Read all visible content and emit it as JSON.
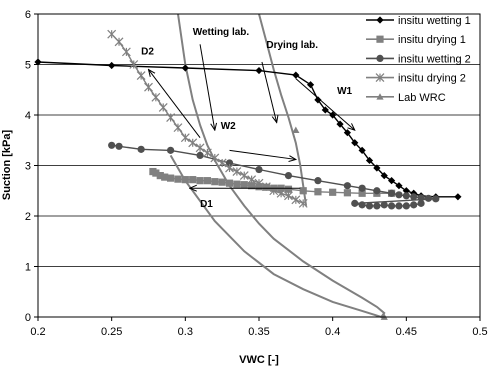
{
  "chart_data": {
    "type": "scatter",
    "title": "",
    "xlabel": "VWC [-]",
    "ylabel": "Suction [kPa]",
    "xlim": [
      0.2,
      0.5
    ],
    "ylim": [
      0,
      6
    ],
    "x_ticks": [
      0.2,
      0.25,
      0.3,
      0.35,
      0.4,
      0.45,
      0.5
    ],
    "x_tick_labels": [
      "0.2",
      "0.25",
      "0.3",
      "0.35",
      "0.4",
      "0.45",
      "0.5"
    ],
    "y_ticks": [
      0,
      1,
      2,
      3,
      4,
      5,
      6
    ],
    "y_tick_labels": [
      "0",
      "1",
      "2",
      "3",
      "4",
      "5",
      "6"
    ],
    "grid": "horizontal",
    "legend_position": "top-right",
    "series": [
      {
        "name": "insitu wetting 1",
        "marker": "diamond",
        "color": "#000000",
        "x": [
          0.2,
          0.25,
          0.3,
          0.35,
          0.375,
          0.385,
          0.39,
          0.395,
          0.4,
          0.405,
          0.41,
          0.415,
          0.42,
          0.425,
          0.43,
          0.435,
          0.44,
          0.445,
          0.45,
          0.455,
          0.46,
          0.47,
          0.485
        ],
        "y": [
          5.05,
          4.98,
          4.93,
          4.88,
          4.79,
          4.6,
          4.3,
          4.1,
          4.0,
          3.82,
          3.65,
          3.45,
          3.3,
          3.1,
          2.95,
          2.8,
          2.7,
          2.6,
          2.5,
          2.45,
          2.4,
          2.38,
          2.38
        ]
      },
      {
        "name": "insitu drying 1",
        "marker": "square",
        "color": "#808080",
        "x": [
          0.278,
          0.28,
          0.283,
          0.286,
          0.29,
          0.295,
          0.3,
          0.305,
          0.31,
          0.315,
          0.32,
          0.325,
          0.33,
          0.335,
          0.34,
          0.345,
          0.35,
          0.355,
          0.36,
          0.365,
          0.37,
          0.38,
          0.39,
          0.4,
          0.41,
          0.42,
          0.43,
          0.44
        ],
        "y": [
          2.88,
          2.85,
          2.8,
          2.77,
          2.75,
          2.73,
          2.72,
          2.72,
          2.7,
          2.7,
          2.68,
          2.67,
          2.65,
          2.63,
          2.62,
          2.6,
          2.58,
          2.57,
          2.55,
          2.55,
          2.53,
          2.5,
          2.48,
          2.47,
          2.46,
          2.45,
          2.45,
          2.45
        ]
      },
      {
        "name": "insitu wetting 2",
        "marker": "circle",
        "color": "#505050",
        "x": [
          0.25,
          0.255,
          0.27,
          0.29,
          0.31,
          0.33,
          0.35,
          0.37,
          0.39,
          0.41,
          0.42,
          0.43,
          0.44,
          0.445,
          0.45,
          0.455,
          0.46,
          0.465,
          0.47,
          0.415,
          0.42,
          0.425,
          0.43,
          0.435,
          0.44,
          0.445,
          0.45,
          0.455,
          0.46
        ],
        "y": [
          3.4,
          3.38,
          3.32,
          3.3,
          3.2,
          3.05,
          2.92,
          2.8,
          2.7,
          2.6,
          2.55,
          2.5,
          2.45,
          2.42,
          2.4,
          2.38,
          2.36,
          2.35,
          2.34,
          2.25,
          2.22,
          2.2,
          2.2,
          2.22,
          2.2,
          2.2,
          2.2,
          2.22,
          2.25
        ]
      },
      {
        "name": "insitu drying 2",
        "marker": "asterisk",
        "color": "#808080",
        "x": [
          0.25,
          0.255,
          0.26,
          0.265,
          0.27,
          0.275,
          0.28,
          0.285,
          0.29,
          0.295,
          0.3,
          0.305,
          0.31,
          0.315,
          0.32,
          0.325,
          0.33,
          0.335,
          0.34,
          0.345,
          0.35,
          0.355,
          0.36,
          0.365,
          0.37,
          0.375,
          0.38
        ],
        "y": [
          5.6,
          5.45,
          5.25,
          5.0,
          4.78,
          4.55,
          4.35,
          4.15,
          3.95,
          3.75,
          3.55,
          3.45,
          3.35,
          3.25,
          3.15,
          3.05,
          2.95,
          2.88,
          2.8,
          2.72,
          2.65,
          2.58,
          2.5,
          2.45,
          2.4,
          2.32,
          2.25
        ]
      },
      {
        "name": "Lab WRC",
        "marker": "triangle",
        "color": "#808080",
        "x": [
          0.375,
          0.435
        ],
        "y": [
          3.7,
          0.0
        ]
      }
    ],
    "curves": [
      {
        "name": "",
        "color": "#808080",
        "x": [
          0.295,
          0.3,
          0.305,
          0.31,
          0.315,
          0.32,
          0.33,
          0.34,
          0.35,
          0.36,
          0.38,
          0.4,
          0.42,
          0.43,
          0.435,
          0.433,
          0.42,
          0.4,
          0.38,
          0.36,
          0.34,
          0.32,
          0.3,
          0.29
        ],
        "y": [
          6.0,
          5.0,
          4.3,
          3.8,
          3.4,
          3.1,
          2.6,
          2.2,
          1.85,
          1.55,
          1.1,
          0.72,
          0.38,
          0.2,
          0.08,
          0.0,
          0.12,
          0.3,
          0.55,
          0.85,
          1.3,
          1.9,
          2.7,
          3.2
        ]
      },
      {
        "name": "",
        "color": "#808080",
        "x": [
          0.35,
          0.355,
          0.36,
          0.365,
          0.37,
          0.375,
          0.378,
          0.38,
          0.382
        ],
        "y": [
          6.0,
          5.45,
          4.9,
          4.4,
          3.95,
          3.45,
          3.0,
          2.6,
          2.2
        ]
      }
    ],
    "annotations": [
      {
        "text": "Wetting lab.",
        "x": 0.305,
        "y": 5.58
      },
      {
        "text": "Drying lab.",
        "x": 0.355,
        "y": 5.33
      },
      {
        "text": "W1",
        "x": 0.403,
        "y": 4.42
      },
      {
        "text": "W2",
        "x": 0.324,
        "y": 3.72
      },
      {
        "text": "D1",
        "x": 0.31,
        "y": 2.18
      },
      {
        "text": "D2",
        "x": 0.27,
        "y": 5.2
      }
    ],
    "arrows": [
      {
        "from": [
          0.31,
          5.4
        ],
        "to": [
          0.32,
          3.7
        ]
      },
      {
        "from": [
          0.352,
          5.05
        ],
        "to": [
          0.362,
          3.85
        ]
      },
      {
        "from": [
          0.375,
          4.72
        ],
        "to": [
          0.415,
          3.7
        ]
      },
      {
        "from": [
          0.33,
          3.3
        ],
        "to": [
          0.375,
          3.12
        ]
      },
      {
        "from": [
          0.378,
          2.55
        ],
        "to": [
          0.303,
          2.55
        ]
      },
      {
        "from": [
          0.31,
          3.55
        ],
        "to": [
          0.275,
          4.9
        ]
      }
    ]
  }
}
